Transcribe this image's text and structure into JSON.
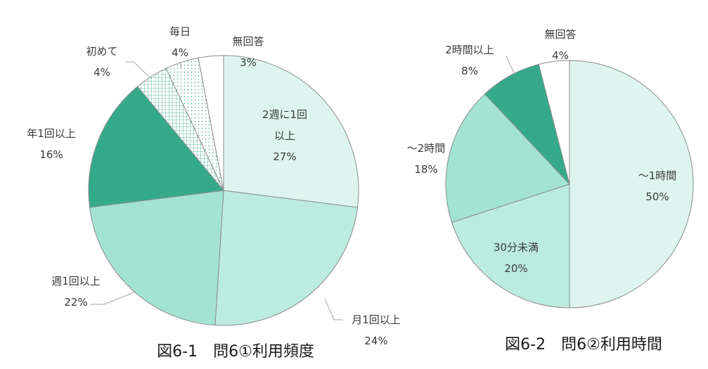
{
  "chart_data": [
    {
      "type": "pie",
      "title": "図6-1　問6①利用頻度",
      "slices": [
        {
          "label": [
            "2週に1回",
            "以上"
          ],
          "value": 27,
          "text": "27%",
          "color": "#ddf5ee",
          "pattern": "none"
        },
        {
          "label": [
            "月1回以上"
          ],
          "value": 24,
          "text": "24%",
          "color": "#bcebdf",
          "pattern": "none"
        },
        {
          "label": [
            "週1回以上"
          ],
          "value": 22,
          "text": "22%",
          "color": "#a3e3d2",
          "pattern": "none"
        },
        {
          "label": [
            "年1回以上"
          ],
          "value": 16,
          "text": "16%",
          "color": "#35aa88",
          "pattern": "none"
        },
        {
          "label": [
            "初めて"
          ],
          "value": 4,
          "text": "4%",
          "color": "#ffffff",
          "pattern": "grid"
        },
        {
          "label": [
            "毎日"
          ],
          "value": 4,
          "text": "4%",
          "color": "#ffffff",
          "pattern": "dots"
        },
        {
          "label": [
            "無回答"
          ],
          "value": 3,
          "text": "3%",
          "color": "#ffffff",
          "pattern": "none"
        }
      ]
    },
    {
      "type": "pie",
      "title": "図6-2　問6②利用時間",
      "slices": [
        {
          "label": [
            "～1時間"
          ],
          "value": 50,
          "text": "50%",
          "color": "#ddf5ee",
          "pattern": "none"
        },
        {
          "label": [
            "30分未満"
          ],
          "value": 20,
          "text": "20%",
          "color": "#bcebdf",
          "pattern": "none"
        },
        {
          "label": [
            "～2時間"
          ],
          "value": 18,
          "text": "18%",
          "color": "#a3e3d2",
          "pattern": "none"
        },
        {
          "label": [
            "2時間以上"
          ],
          "value": 8,
          "text": "8%",
          "color": "#35aa88",
          "pattern": "none"
        },
        {
          "label": [
            "無回答"
          ],
          "value": 4,
          "text": "4%",
          "color": "#ffffff",
          "pattern": "none"
        }
      ]
    }
  ]
}
